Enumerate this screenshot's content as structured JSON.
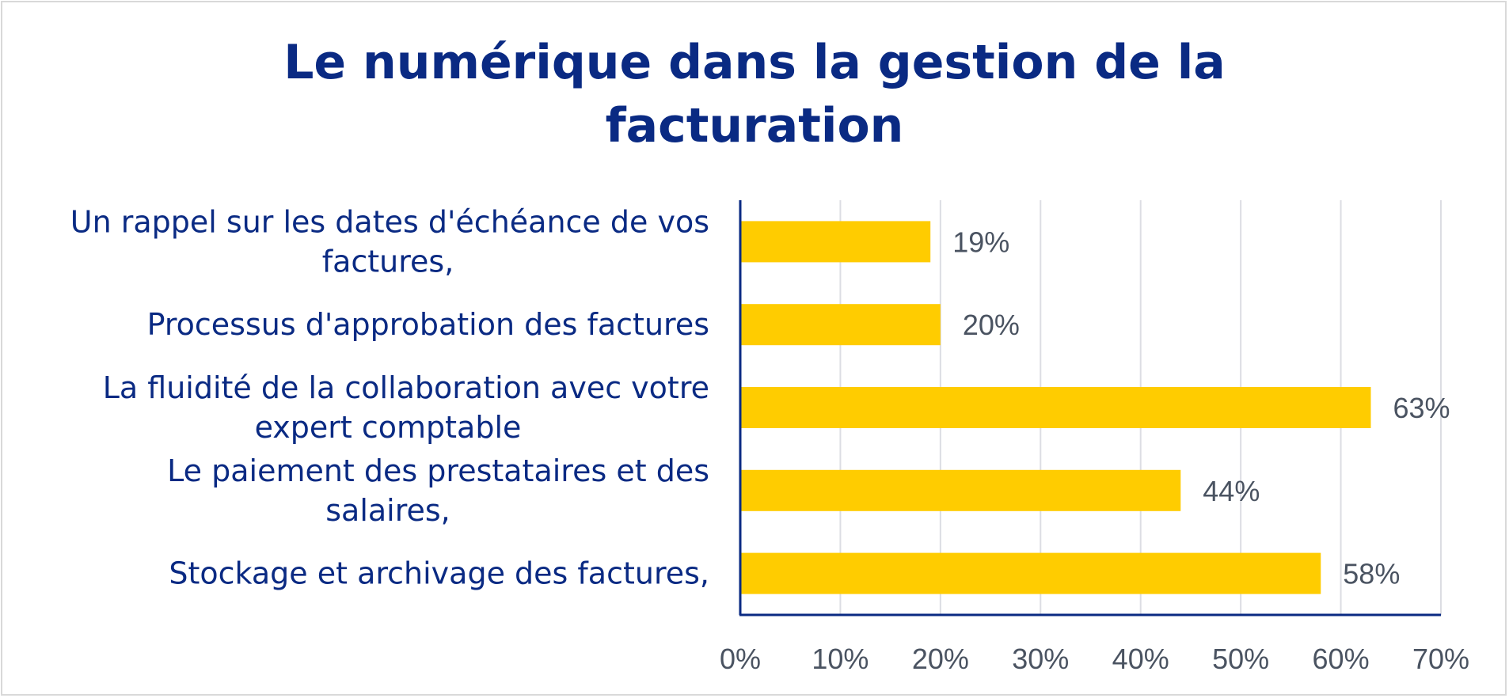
{
  "chart_data": {
    "type": "bar",
    "orientation": "horizontal",
    "title": [
      "Le numérique dans la gestion de la",
      "facturation"
    ],
    "categories": [
      [
        "Un rappel sur les dates d'échéance de vos",
        "factures,"
      ],
      [
        "Processus d'approbation des factures"
      ],
      [
        "La fluidité de la collaboration avec votre",
        "expert comptable"
      ],
      [
        "Le paiement des prestataires et des",
        "salaires,"
      ],
      [
        "Stockage et archivage des factures,"
      ]
    ],
    "values": [
      19,
      20,
      63,
      44,
      58
    ],
    "value_labels": [
      "19%",
      "20%",
      "63%",
      "44%",
      "58%"
    ],
    "xlim": [
      0,
      70
    ],
    "x_ticks": [
      0,
      10,
      20,
      30,
      40,
      50,
      60,
      70
    ],
    "x_tick_labels": [
      "0%",
      "10%",
      "20%",
      "30%",
      "40%",
      "50%",
      "60%",
      "70%"
    ],
    "grid": true,
    "legend": "none",
    "colors": {
      "bar": "#FFCC00",
      "title": "#0A2A83",
      "category_text": "#0A2A83",
      "value_text": "#4A5361",
      "axis": "#0A2A83",
      "grid": "#DCDDE3"
    }
  }
}
